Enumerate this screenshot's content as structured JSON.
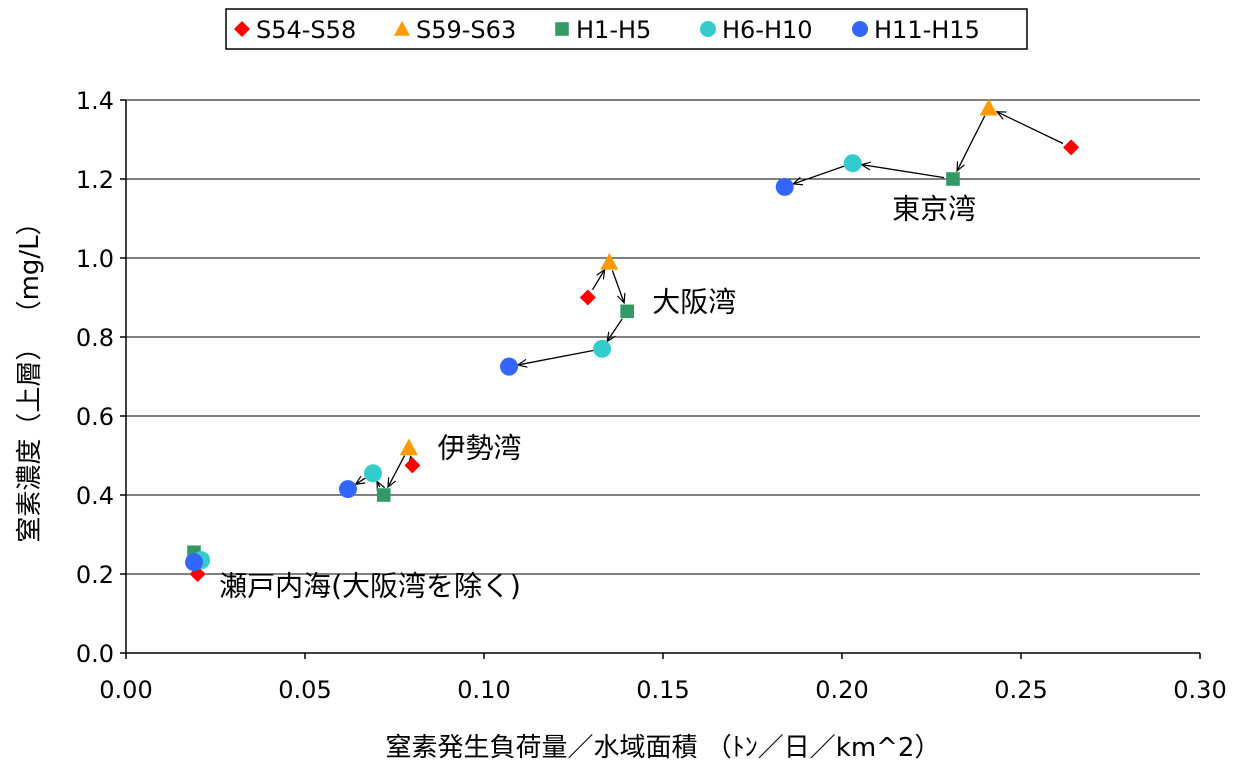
{
  "chart_data": {
    "type": "scatter",
    "xlabel": "窒素発生負荷量／水域面積 （ﾄﾝ／日／km^2）",
    "ylabel": "窒素濃度（上層） （mg/L）",
    "xlim": [
      0.0,
      0.3
    ],
    "ylim": [
      0.0,
      1.4
    ],
    "x_ticks": [
      "0.00",
      "0.05",
      "0.10",
      "0.15",
      "0.20",
      "0.25",
      "0.30"
    ],
    "y_ticks": [
      "0.0",
      "0.2",
      "0.4",
      "0.6",
      "0.8",
      "1.0",
      "1.2",
      "1.4"
    ],
    "grid": "horizontal",
    "legend": "top-center",
    "series": [
      {
        "name": "S54-S58",
        "marker": "diamond",
        "color": "#ff0000",
        "points": [
          {
            "x": 0.264,
            "y": 1.28
          },
          {
            "x": 0.129,
            "y": 0.9
          },
          {
            "x": 0.08,
            "y": 0.475
          },
          {
            "x": 0.02,
            "y": 0.2
          }
        ]
      },
      {
        "name": "S59-S63",
        "marker": "triangle",
        "color": "#ff9900",
        "points": [
          {
            "x": 0.241,
            "y": 1.38
          },
          {
            "x": 0.135,
            "y": 0.99
          },
          {
            "x": 0.079,
            "y": 0.52
          }
        ]
      },
      {
        "name": "H1-H5",
        "marker": "square",
        "color": "#339966",
        "points": [
          {
            "x": 0.231,
            "y": 1.2
          },
          {
            "x": 0.14,
            "y": 0.865
          },
          {
            "x": 0.072,
            "y": 0.4
          },
          {
            "x": 0.019,
            "y": 0.255
          }
        ]
      },
      {
        "name": "H6-H10",
        "marker": "circle",
        "color": "#33cccc",
        "points": [
          {
            "x": 0.203,
            "y": 1.24
          },
          {
            "x": 0.133,
            "y": 0.77
          },
          {
            "x": 0.069,
            "y": 0.455
          },
          {
            "x": 0.021,
            "y": 0.235
          }
        ]
      },
      {
        "name": "H11-H15",
        "marker": "circle",
        "color": "#3366ff",
        "points": [
          {
            "x": 0.184,
            "y": 1.18
          },
          {
            "x": 0.107,
            "y": 0.725
          },
          {
            "x": 0.062,
            "y": 0.415
          },
          {
            "x": 0.019,
            "y": 0.23
          }
        ]
      }
    ],
    "arrows": [
      {
        "from": [
          0.264,
          1.28
        ],
        "to": [
          0.241,
          1.38
        ]
      },
      {
        "from": [
          0.241,
          1.38
        ],
        "to": [
          0.231,
          1.2
        ]
      },
      {
        "from": [
          0.231,
          1.2
        ],
        "to": [
          0.203,
          1.24
        ]
      },
      {
        "from": [
          0.203,
          1.24
        ],
        "to": [
          0.184,
          1.18
        ]
      },
      {
        "from": [
          0.129,
          0.9
        ],
        "to": [
          0.135,
          0.99
        ]
      },
      {
        "from": [
          0.135,
          0.99
        ],
        "to": [
          0.14,
          0.865
        ]
      },
      {
        "from": [
          0.14,
          0.865
        ],
        "to": [
          0.133,
          0.77
        ]
      },
      {
        "from": [
          0.133,
          0.77
        ],
        "to": [
          0.107,
          0.725
        ]
      },
      {
        "from": [
          0.08,
          0.475
        ],
        "to": [
          0.079,
          0.52
        ]
      },
      {
        "from": [
          0.079,
          0.52
        ],
        "to": [
          0.072,
          0.4
        ]
      },
      {
        "from": [
          0.072,
          0.4
        ],
        "to": [
          0.069,
          0.455
        ]
      },
      {
        "from": [
          0.069,
          0.455
        ],
        "to": [
          0.062,
          0.415
        ]
      }
    ],
    "annotations": [
      {
        "text": "東京湾",
        "x": 0.214,
        "y": 1.1
      },
      {
        "text": "大阪湾",
        "x": 0.147,
        "y": 0.865
      },
      {
        "text": "伊勢湾",
        "x": 0.087,
        "y": 0.495
      },
      {
        "text": "瀬戸内海(大阪湾を除く)",
        "x": 0.026,
        "y": 0.145
      }
    ]
  }
}
